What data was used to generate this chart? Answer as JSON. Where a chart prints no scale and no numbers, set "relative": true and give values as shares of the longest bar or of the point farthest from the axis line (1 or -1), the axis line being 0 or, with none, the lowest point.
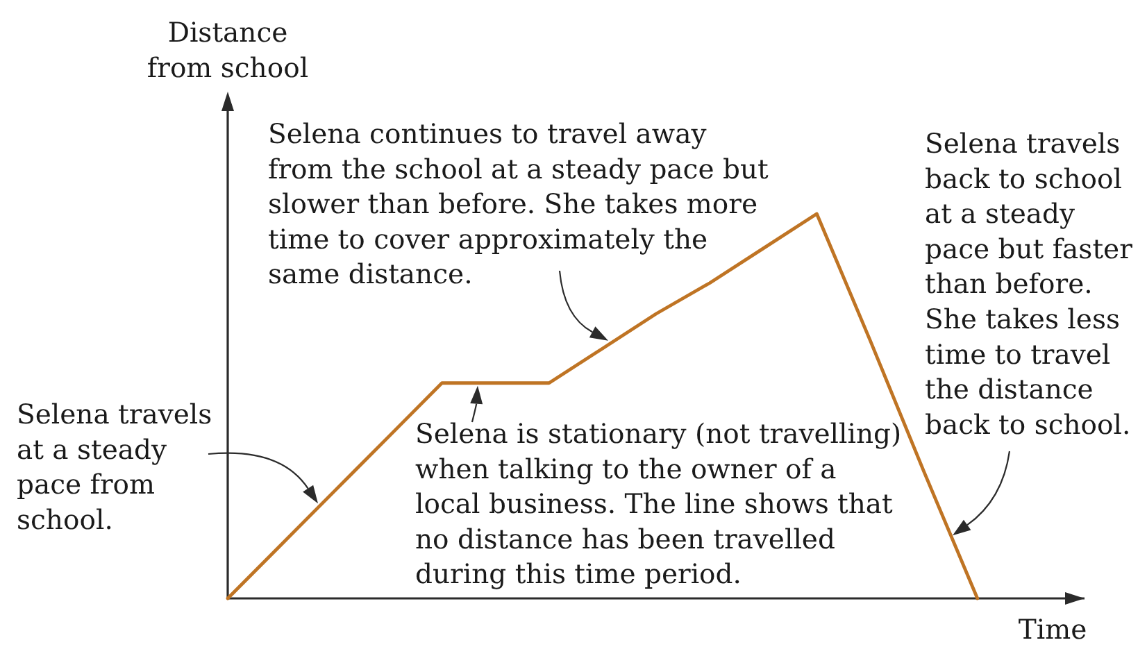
{
  "chart_data": {
    "type": "line",
    "relative": true,
    "xlabel": "Time",
    "ylabel": "Distance\nfrom school",
    "categories": [
      null,
      null,
      null,
      null,
      null,
      null,
      null,
      null,
      null,
      null,
      null,
      null,
      null,
      null,
      null,
      null,
      null
    ],
    "values": [
      0,
      0.14,
      0.28,
      0.42,
      0.56,
      0.56,
      0.56,
      0.65,
      0.74,
      0.82,
      0.91,
      1,
      0.67,
      0.33,
      0,
      null,
      null
    ],
    "color": "#bf7424",
    "annotations": [
      "Selena travels\nat a steady\npace from\nschool.",
      "Selena is stationary (not travelling)\nwhen talking to the owner of a\nlocal business. The line shows that\nno distance has been travelled\nduring this time period.",
      "Selena continues to travel away\nfrom the school at a steady pace but\nslower than before. She takes more\ntime to cover approximately the\nsame distance.",
      "Selena travels\nback to school\nat a steady\npace but faster\nthan before.\nShe takes less\ntime to travel\nthe distance\nback to school."
    ]
  }
}
